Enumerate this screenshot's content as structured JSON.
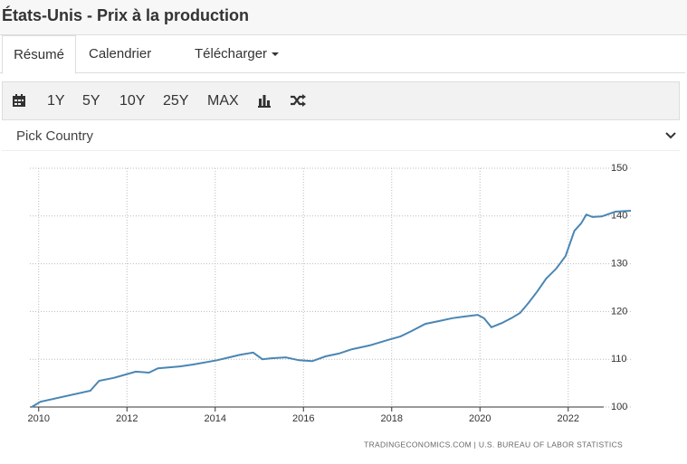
{
  "header": {
    "title": "États-Unis - Prix à la production"
  },
  "tabs": [
    "Résumé",
    "Calendrier",
    "Télécharger"
  ],
  "toolbar": {
    "ranges": [
      "1Y",
      "5Y",
      "10Y",
      "25Y",
      "MAX"
    ]
  },
  "country_picker": {
    "label": "Pick Country"
  },
  "chart_data": {
    "type": "line",
    "x": [
      2009.84,
      2010.04,
      2011.17,
      2011.37,
      2011.7,
      2012.2,
      2012.5,
      2012.7,
      2013.2,
      2013.5,
      2014.04,
      2014.55,
      2014.86,
      2015.07,
      2015.27,
      2015.6,
      2015.9,
      2016.2,
      2016.5,
      2016.8,
      2017.1,
      2017.5,
      2017.9,
      2018.2,
      2018.45,
      2018.76,
      2019.07,
      2019.37,
      2019.68,
      2019.95,
      2020.09,
      2020.26,
      2020.5,
      2020.71,
      2020.91,
      2021.1,
      2021.3,
      2021.5,
      2021.73,
      2021.94,
      2022.14,
      2022.29,
      2022.41,
      2022.55,
      2022.76,
      2023.07,
      2023.42
    ],
    "series": [
      {
        "name": "Prix à la production",
        "color": "#4a86b3",
        "values": [
          100.0,
          101.1,
          103.4,
          105.5,
          106.1,
          107.4,
          107.2,
          108.1,
          108.5,
          108.9,
          109.8,
          110.9,
          111.4,
          110.0,
          110.2,
          110.4,
          109.8,
          109.6,
          110.6,
          111.2,
          112.1,
          112.9,
          114.0,
          114.8,
          115.9,
          117.4,
          118.0,
          118.6,
          119.0,
          119.3,
          118.6,
          116.7,
          117.6,
          118.6,
          119.7,
          121.8,
          124.2,
          126.9,
          129.0,
          131.6,
          136.9,
          138.4,
          140.3,
          139.8,
          139.9,
          140.9,
          141.1
        ]
      }
    ],
    "xlim": [
      2009.8,
      2023.42
    ],
    "ylim": [
      100,
      150
    ],
    "xticks": [
      2010,
      2012,
      2014,
      2016,
      2018,
      2020,
      2022
    ],
    "yticks": [
      100,
      110,
      120,
      130,
      140,
      150
    ],
    "grid": true,
    "source": "TRADINGECONOMICS.COM  |  U.S. BUREAU OF LABOR STATISTICS"
  }
}
